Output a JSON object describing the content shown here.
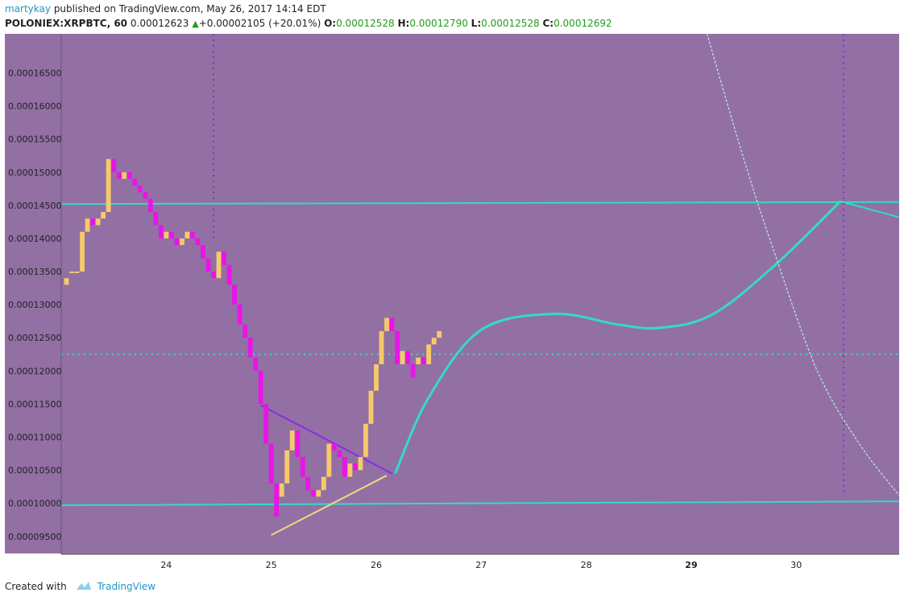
{
  "header": {
    "author": "martykay",
    "published_text": "published on TradingView.com, May 26, 2017 14:14 EDT",
    "symbol": "POLONIEX:XRPBTC, 60",
    "last": "0.00012623",
    "change_arrow": "▲",
    "change": "+0.00002105 (+20.01%)",
    "o_label": "O:",
    "o_value": "0.00012528",
    "h_label": "H:",
    "h_value": "0.00012790",
    "l_label": "L:",
    "l_value": "0.00012528",
    "c_label": "C:",
    "c_value": "0.00012692"
  },
  "footer": {
    "created_with": "Created with",
    "brand": "TradingView",
    "logo_icon": "tradingview-cloud-icon"
  },
  "colors": {
    "plot_bg": "#9270a4",
    "axis_bg": "#9270a4",
    "up": "#f7c96a",
    "down": "#ea14e8",
    "cyan": "#33dcc4",
    "purple": "#8a2be2",
    "yellow_line": "#f3d77d",
    "text_green": "#1e9e1e"
  },
  "chart_data": {
    "type": "candlestick",
    "y_ticks": [
      "0.00016500",
      "0.00016000",
      "0.00015500",
      "0.00015000",
      "0.00014500",
      "0.00014000",
      "0.00013500",
      "0.00013000",
      "0.00012500",
      "0.00012000",
      "0.00011500",
      "0.00011000",
      "0.00010500",
      "0.00010000",
      "0.00009500"
    ],
    "y_tick_values": [
      0.000165,
      0.00016,
      0.000155,
      0.00015,
      0.000145,
      0.00014,
      0.000135,
      0.00013,
      0.000125,
      0.00012,
      0.000115,
      0.00011,
      0.000105,
      0.0001,
      9.5e-05
    ],
    "ylim": [
      9.23e-05,
      0.0001709
    ],
    "x_ticks": [
      {
        "label": "24",
        "day": 24,
        "bold": false
      },
      {
        "label": "25",
        "day": 25,
        "bold": false
      },
      {
        "label": "26",
        "day": 26,
        "bold": false
      },
      {
        "label": "27",
        "day": 27,
        "bold": false
      },
      {
        "label": "28",
        "day": 28,
        "bold": false
      },
      {
        "label": "29",
        "day": 29,
        "bold": true
      },
      {
        "label": "30",
        "day": 30,
        "bold": false
      }
    ],
    "xlim": [
      23.0,
      30.98
    ],
    "candles": [
      [
        23.05,
        0.000133,
        0.000134
      ],
      [
        23.1,
        0.000135,
        0.000135
      ],
      [
        23.15,
        0.000135,
        0.000135
      ],
      [
        23.2,
        0.000135,
        0.000141
      ],
      [
        23.25,
        0.000141,
        0.000143
      ],
      [
        23.3,
        0.000143,
        0.000142
      ],
      [
        23.35,
        0.000142,
        0.000143
      ],
      [
        23.4,
        0.000143,
        0.000144
      ],
      [
        23.45,
        0.000144,
        0.000152
      ],
      [
        23.5,
        0.000152,
        0.00015
      ],
      [
        23.55,
        0.00015,
        0.000149
      ],
      [
        23.6,
        0.000149,
        0.00015
      ],
      [
        23.65,
        0.00015,
        0.000149
      ],
      [
        23.7,
        0.000149,
        0.000148
      ],
      [
        23.75,
        0.000148,
        0.000147
      ],
      [
        23.8,
        0.000147,
        0.000146
      ],
      [
        23.85,
        0.000146,
        0.000144
      ],
      [
        23.9,
        0.000144,
        0.000142
      ],
      [
        23.95,
        0.000142,
        0.00014
      ],
      [
        24.0,
        0.00014,
        0.000141
      ],
      [
        24.05,
        0.000141,
        0.00014
      ],
      [
        24.1,
        0.00014,
        0.000139
      ],
      [
        24.15,
        0.000139,
        0.00014
      ],
      [
        24.2,
        0.00014,
        0.000141
      ],
      [
        24.25,
        0.000141,
        0.00014
      ],
      [
        24.3,
        0.00014,
        0.000139
      ],
      [
        24.35,
        0.000139,
        0.000137
      ],
      [
        24.4,
        0.000137,
        0.000135
      ],
      [
        24.45,
        0.000135,
        0.000134
      ],
      [
        24.5,
        0.000134,
        0.000138
      ],
      [
        24.55,
        0.000138,
        0.000136
      ],
      [
        24.6,
        0.000136,
        0.000133
      ],
      [
        24.65,
        0.000133,
        0.00013
      ],
      [
        24.7,
        0.00013,
        0.000127
      ],
      [
        24.75,
        0.000127,
        0.000125
      ],
      [
        24.8,
        0.000125,
        0.000122
      ],
      [
        24.85,
        0.000122,
        0.00012
      ],
      [
        24.9,
        0.00012,
        0.000115
      ],
      [
        24.95,
        0.000115,
        0.000109
      ],
      [
        25.0,
        0.000109,
        0.000103
      ],
      [
        25.05,
        0.000103,
        9.8e-05
      ],
      [
        25.1,
        0.000101,
        0.000103
      ],
      [
        25.15,
        0.000103,
        0.000108
      ],
      [
        25.2,
        0.000108,
        0.000111
      ],
      [
        25.25,
        0.000111,
        0.000107
      ],
      [
        25.3,
        0.000107,
        0.000104
      ],
      [
        25.35,
        0.000104,
        0.000102
      ],
      [
        25.4,
        0.000102,
        0.000101
      ],
      [
        25.45,
        0.000101,
        0.000102
      ],
      [
        25.5,
        0.000102,
        0.000104
      ],
      [
        25.55,
        0.000104,
        0.000109
      ],
      [
        25.6,
        0.000109,
        0.000108
      ],
      [
        25.65,
        0.000108,
        0.000107
      ],
      [
        25.7,
        0.000107,
        0.000104
      ],
      [
        25.75,
        0.000104,
        0.000106
      ],
      [
        25.8,
        0.000106,
        0.000105
      ],
      [
        25.85,
        0.000105,
        0.000107
      ],
      [
        25.9,
        0.000107,
        0.000112
      ],
      [
        25.95,
        0.000112,
        0.000117
      ],
      [
        26.0,
        0.000117,
        0.000121
      ],
      [
        26.05,
        0.000121,
        0.000126
      ],
      [
        26.1,
        0.000126,
        0.000128
      ],
      [
        26.15,
        0.000128,
        0.000126
      ],
      [
        26.2,
        0.000126,
        0.000121
      ],
      [
        26.25,
        0.000121,
        0.000123
      ],
      [
        26.3,
        0.000123,
        0.000121
      ],
      [
        26.35,
        0.000121,
        0.000119
      ],
      [
        26.4,
        0.000121,
        0.000122
      ],
      [
        26.45,
        0.000122,
        0.000121
      ],
      [
        26.5,
        0.000121,
        0.000124
      ],
      [
        26.55,
        0.000124,
        0.000125
      ],
      [
        26.6,
        0.000125,
        0.000126
      ]
    ],
    "lines": [
      {
        "name": "support",
        "color": "cyan",
        "points": [
          [
            23.0,
            9.97e-05
          ],
          [
            30.98,
            0.0001003
          ]
        ]
      },
      {
        "name": "resistance",
        "color": "cyan",
        "points": [
          [
            23.0,
            0.0001452
          ],
          [
            30.98,
            0.0001455
          ]
        ]
      },
      {
        "name": "projection-tail",
        "color": "cyan",
        "points": [
          [
            30.42,
            0.0001456
          ],
          [
            30.98,
            0.0001432
          ]
        ]
      },
      {
        "name": "upper-wedge",
        "color": "purple",
        "points": [
          [
            24.9,
            0.0001148
          ],
          [
            26.15,
            0.0001045
          ]
        ]
      },
      {
        "name": "lower-wedge",
        "color": "yellow_line",
        "points": [
          [
            25.0,
            9.52e-05
          ],
          [
            26.1,
            0.0001042
          ]
        ]
      }
    ],
    "projection_curve": [
      [
        26.18,
        0.0001045
      ],
      [
        26.5,
        0.000116
      ],
      [
        27.0,
        0.0001262
      ],
      [
        27.7,
        0.0001286
      ],
      [
        28.3,
        0.000127
      ],
      [
        28.7,
        0.0001265
      ],
      [
        29.2,
        0.0001285
      ],
      [
        29.8,
        0.000136
      ],
      [
        30.42,
        0.0001456
      ]
    ],
    "hlines_dotted": [
      {
        "name": "mid-level",
        "value": 0.0001225
      }
    ],
    "vlines_dotted": [
      {
        "name": "time-marker-1",
        "day": 24.45,
        "from": 0.0001709,
        "to": 0.00014
      },
      {
        "name": "time-marker-2",
        "day": 30.45,
        "from": 0.0001709,
        "to": 0.000101
      }
    ],
    "arc": [
      [
        29.15,
        0.0001709
      ],
      [
        29.5,
        0.000152
      ],
      [
        29.8,
        0.0001375
      ],
      [
        30.2,
        0.00012
      ],
      [
        30.6,
        0.000109
      ],
      [
        30.98,
        0.0001012
      ]
    ]
  }
}
